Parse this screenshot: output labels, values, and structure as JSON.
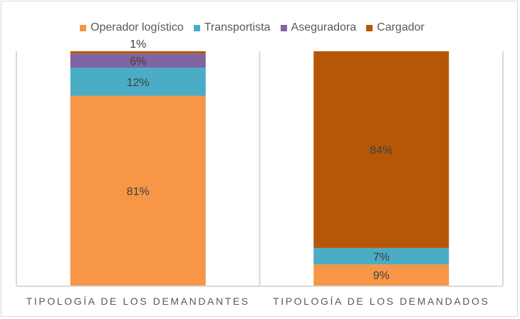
{
  "chart_data": {
    "type": "bar",
    "stacked": true,
    "percent_stacked": true,
    "title": "",
    "xlabel": "",
    "ylabel": "",
    "ylim": [
      0,
      100
    ],
    "grid": false,
    "legend_position": "top",
    "categories": [
      "TIPOLOGÍA DE LOS DEMANDANTES",
      "TIPOLOGÍA DE LOS DEMANDADOS"
    ],
    "series": [
      {
        "name": "Operador logístico",
        "color": "#F79646",
        "values": [
          81,
          9
        ],
        "labels": [
          "81%",
          "9%"
        ]
      },
      {
        "name": "Transportista",
        "color": "#4BACC6",
        "values": [
          12,
          7
        ],
        "labels": [
          "12%",
          "7%"
        ]
      },
      {
        "name": "Aseguradora",
        "color": "#8064A2",
        "values": [
          6,
          0
        ],
        "labels": [
          "6%",
          ""
        ]
      },
      {
        "name": "Cargador",
        "color": "#B65708",
        "values": [
          1,
          84
        ],
        "labels": [
          "1%",
          "84%"
        ]
      }
    ]
  }
}
